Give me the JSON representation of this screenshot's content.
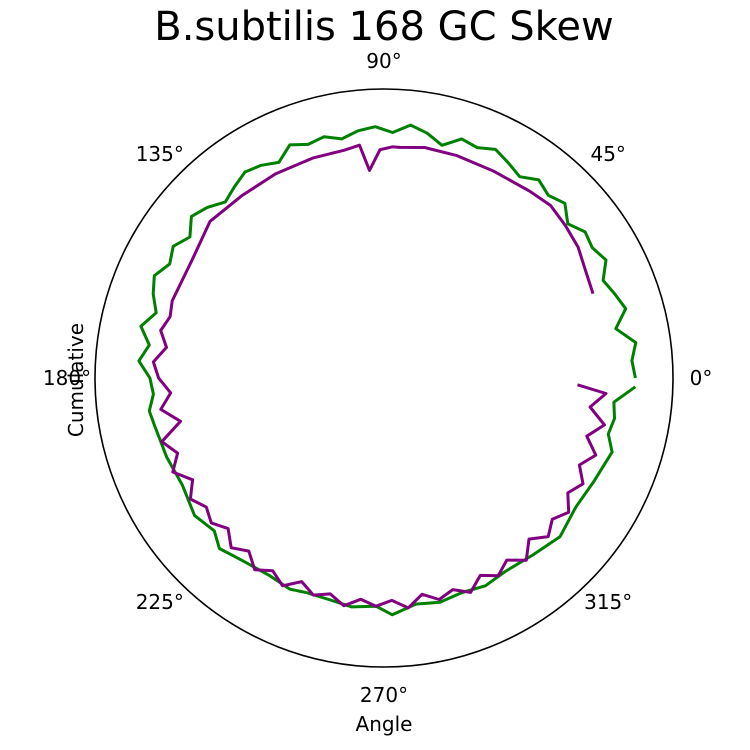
{
  "chart_data": {
    "type": "line",
    "projection": "polar",
    "title": "B.subtilis 168 GC Skew",
    "xlabel": "Angle",
    "ylabel": "Cumulative",
    "angle_unit": "degrees",
    "angle_ticks": [
      "0°",
      "45°",
      "90°",
      "135°",
      "180°",
      "225°",
      "270°",
      "315°"
    ],
    "radial_range": [
      0,
      1.0
    ],
    "grid": false,
    "series": [
      {
        "color": "#008000",
        "points": [
          [
            0,
            0.87
          ],
          [
            4,
            0.86
          ],
          [
            8,
            0.88
          ],
          [
            12,
            0.82
          ],
          [
            16,
            0.87
          ],
          [
            20,
            0.85
          ],
          [
            24,
            0.83
          ],
          [
            28,
            0.87
          ],
          [
            32,
            0.85
          ],
          [
            36,
            0.86
          ],
          [
            40,
            0.83
          ],
          [
            44,
            0.87
          ],
          [
            48,
            0.85
          ],
          [
            52,
            0.87
          ],
          [
            56,
            0.84
          ],
          [
            60,
            0.86
          ],
          [
            64,
            0.88
          ],
          [
            68,
            0.86
          ],
          [
            72,
            0.87
          ],
          [
            76,
            0.83
          ],
          [
            80,
            0.86
          ],
          [
            84,
            0.88
          ],
          [
            88,
            0.85
          ],
          [
            92,
            0.87
          ],
          [
            96,
            0.86
          ],
          [
            100,
            0.84
          ],
          [
            104,
            0.86
          ],
          [
            108,
            0.85
          ],
          [
            112,
            0.87
          ],
          [
            116,
            0.83
          ],
          [
            120,
            0.85
          ],
          [
            124,
            0.86
          ],
          [
            128,
            0.84
          ],
          [
            132,
            0.82
          ],
          [
            136,
            0.85
          ],
          [
            140,
            0.87
          ],
          [
            144,
            0.83
          ],
          [
            148,
            0.86
          ],
          [
            152,
            0.84
          ],
          [
            156,
            0.87
          ],
          [
            160,
            0.85
          ],
          [
            164,
            0.82
          ],
          [
            168,
            0.86
          ],
          [
            172,
            0.82
          ],
          [
            176,
            0.85
          ],
          [
            180,
            0.81
          ],
          [
            184,
            0.8
          ],
          [
            188,
            0.82
          ],
          [
            192,
            0.81
          ],
          [
            200,
            0.8
          ],
          [
            208,
            0.79
          ],
          [
            216,
            0.81
          ],
          [
            222,
            0.79
          ],
          [
            226,
            0.82
          ],
          [
            232,
            0.8
          ],
          [
            240,
            0.79
          ],
          [
            246,
            0.8
          ],
          [
            250,
            0.79
          ],
          [
            256,
            0.79
          ],
          [
            262,
            0.8
          ],
          [
            268,
            0.79
          ],
          [
            272,
            0.82
          ],
          [
            278,
            0.79
          ],
          [
            284,
            0.8
          ],
          [
            290,
            0.79
          ],
          [
            296,
            0.8
          ],
          [
            302,
            0.79
          ],
          [
            310,
            0.8
          ],
          [
            318,
            0.82
          ],
          [
            326,
            0.8
          ],
          [
            334,
            0.81
          ],
          [
            342,
            0.83
          ],
          [
            346,
            0.8
          ],
          [
            350,
            0.81
          ],
          [
            354,
            0.8
          ],
          [
            358,
            0.87
          ]
        ]
      },
      {
        "color": "#800080",
        "points": [
          [
            22,
            0.78
          ],
          [
            28,
            0.79
          ],
          [
            34,
            0.81
          ],
          [
            40,
            0.82
          ],
          [
            46,
            0.83
          ],
          [
            52,
            0.82
          ],
          [
            62,
            0.81
          ],
          [
            72,
            0.81
          ],
          [
            80,
            0.81
          ],
          [
            86,
            0.8
          ],
          [
            88,
            0.8
          ],
          [
            91,
            0.79
          ],
          [
            94,
            0.72
          ],
          [
            96,
            0.81
          ],
          [
            100,
            0.8
          ],
          [
            108,
            0.8
          ],
          [
            118,
            0.8
          ],
          [
            128,
            0.8
          ],
          [
            138,
            0.81
          ],
          [
            148,
            0.78
          ],
          [
            160,
            0.78
          ],
          [
            164,
            0.77
          ],
          [
            168,
            0.79
          ],
          [
            172,
            0.76
          ],
          [
            176,
            0.8
          ],
          [
            180,
            0.78
          ],
          [
            184,
            0.74
          ],
          [
            188,
            0.78
          ],
          [
            192,
            0.72
          ],
          [
            196,
            0.8
          ],
          [
            200,
            0.76
          ],
          [
            204,
            0.8
          ],
          [
            208,
            0.75
          ],
          [
            212,
            0.79
          ],
          [
            216,
            0.76
          ],
          [
            220,
            0.78
          ],
          [
            224,
            0.75
          ],
          [
            228,
            0.79
          ],
          [
            232,
            0.76
          ],
          [
            236,
            0.8
          ],
          [
            240,
            0.77
          ],
          [
            244,
            0.8
          ],
          [
            248,
            0.76
          ],
          [
            252,
            0.79
          ],
          [
            256,
            0.77
          ],
          [
            260,
            0.8
          ],
          [
            264,
            0.77
          ],
          [
            268,
            0.79
          ],
          [
            272,
            0.77
          ],
          [
            276,
            0.8
          ],
          [
            280,
            0.76
          ],
          [
            284,
            0.79
          ],
          [
            288,
            0.77
          ],
          [
            292,
            0.8
          ],
          [
            296,
            0.76
          ],
          [
            300,
            0.79
          ],
          [
            304,
            0.76
          ],
          [
            308,
            0.8
          ],
          [
            312,
            0.75
          ],
          [
            316,
            0.79
          ],
          [
            320,
            0.76
          ],
          [
            324,
            0.79
          ],
          [
            328,
            0.75
          ],
          [
            332,
            0.78
          ],
          [
            336,
            0.74
          ],
          [
            340,
            0.78
          ],
          [
            344,
            0.73
          ],
          [
            348,
            0.78
          ],
          [
            352,
            0.72
          ],
          [
            356,
            0.77
          ],
          [
            358,
            0.67
          ]
        ]
      }
    ]
  }
}
